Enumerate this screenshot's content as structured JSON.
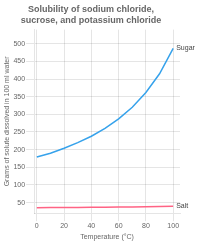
{
  "chart_data": {
    "type": "line",
    "title": "Solubility of sodium chloride,\nsucrose, and potassium chloride",
    "x_label": "Temperature (°C)",
    "y_label": "Grams of solute dissolved in 100 ml water",
    "xlim": [
      -2,
      105
    ],
    "ylim": [
      20,
      540
    ],
    "xticks": [
      0,
      20,
      40,
      60,
      80,
      100
    ],
    "yticks": [
      50,
      100,
      150,
      200,
      250,
      300,
      350,
      400,
      450,
      500
    ],
    "grid": true,
    "series": [
      {
        "name": "Sugar",
        "x": [
          0,
          10,
          20,
          30,
          40,
          50,
          60,
          70,
          80,
          90,
          100
        ],
        "values": [
          179,
          190,
          204,
          220,
          238,
          260,
          287,
          320,
          362,
          415,
          487
        ]
      },
      {
        "name": "Salt",
        "x": [
          0,
          10,
          20,
          30,
          40,
          50,
          60,
          70,
          80,
          90,
          100
        ],
        "values": [
          35.7,
          35.8,
          36.0,
          36.3,
          36.6,
          37.0,
          37.3,
          37.8,
          38.4,
          39.0,
          39.8
        ]
      }
    ]
  }
}
